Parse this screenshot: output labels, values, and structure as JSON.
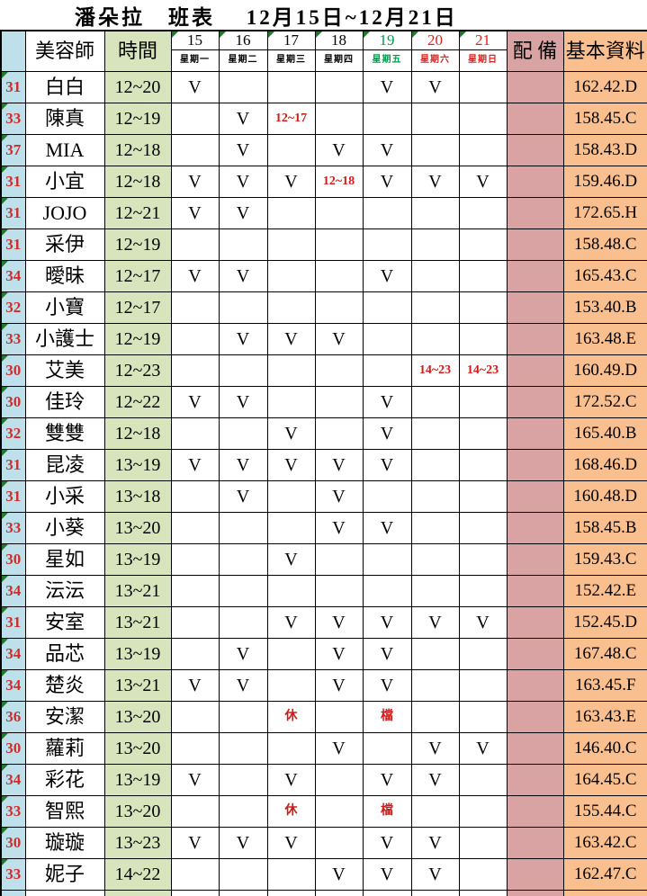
{
  "title": "潘朵拉　班表　 12月15日~12月21日",
  "colors": {
    "row_number_bg": "#BEE0EA",
    "time_col_bg": "#D8E4BC",
    "equipment_col_bg": "#D9A3A3",
    "basic_info_col_bg": "#FABF8F",
    "red_text": "#D22B2B",
    "green_text": "#009B4C",
    "triangle": "#217A2B"
  },
  "table": {
    "headers": {
      "staff": "美容師",
      "time": "時間",
      "equipment": "配 備",
      "basic_info": "基本資料"
    },
    "day_columns": [
      {
        "date": "15",
        "weekday": "星期一",
        "color": "#000000"
      },
      {
        "date": "16",
        "weekday": "星期二",
        "color": "#000000"
      },
      {
        "date": "17",
        "weekday": "星期三",
        "color": "#000000"
      },
      {
        "date": "18",
        "weekday": "星期四",
        "color": "#000000"
      },
      {
        "date": "19",
        "weekday": "星期五",
        "color": "#009B4C"
      },
      {
        "date": "20",
        "weekday": "星期六",
        "color": "#DF2020"
      },
      {
        "date": "21",
        "weekday": "星期日",
        "color": "#DF2020"
      }
    ],
    "rows": [
      {
        "num": "31",
        "name": "白白",
        "time": "12~20",
        "days": [
          "V",
          "",
          "",
          "",
          "V",
          "V",
          ""
        ],
        "info": "162.42.D"
      },
      {
        "num": "33",
        "name": "陳真",
        "time": "12~19",
        "days": [
          "",
          "V",
          "12~17",
          "",
          "",
          "",
          ""
        ],
        "info": "158.45.C"
      },
      {
        "num": "37",
        "name": "MIA",
        "time": "12~18",
        "days": [
          "",
          "V",
          "",
          "V",
          "V",
          "",
          ""
        ],
        "info": "158.43.D"
      },
      {
        "num": "31",
        "name": "小宜",
        "time": "12~18",
        "days": [
          "V",
          "V",
          "V",
          "12~18",
          "V",
          "V",
          "V"
        ],
        "info": "159.46.D"
      },
      {
        "num": "31",
        "name": "JOJO",
        "time": "12~21",
        "days": [
          "V",
          "V",
          "",
          "",
          "",
          "",
          ""
        ],
        "info": "172.65.H"
      },
      {
        "num": "31",
        "name": "采伊",
        "time": "12~19",
        "days": [
          "",
          "",
          "",
          "",
          "",
          "",
          ""
        ],
        "info": "158.48.C"
      },
      {
        "num": "34",
        "name": "曖昧",
        "time": "12~17",
        "days": [
          "V",
          "V",
          "",
          "",
          "V",
          "",
          ""
        ],
        "info": "165.43.C"
      },
      {
        "num": "32",
        "name": "小寶",
        "time": "12~17",
        "days": [
          "",
          "",
          "",
          "",
          "",
          "",
          ""
        ],
        "info": "153.40.B"
      },
      {
        "num": "33",
        "name": "小護士",
        "time": "12~19",
        "days": [
          "",
          "V",
          "V",
          "V",
          "",
          "",
          ""
        ],
        "info": "163.48.E"
      },
      {
        "num": "30",
        "name": "艾美",
        "time": "12~23",
        "days": [
          "",
          "",
          "",
          "",
          "",
          "14~23",
          "14~23"
        ],
        "info": "160.49.D"
      },
      {
        "num": "30",
        "name": "佳玲",
        "time": "12~22",
        "days": [
          "V",
          "V",
          "",
          "",
          "V",
          "",
          ""
        ],
        "info": "172.52.C"
      },
      {
        "num": "32",
        "name": "雙雙",
        "time": "12~18",
        "days": [
          "",
          "",
          "V",
          "",
          "V",
          "",
          ""
        ],
        "info": "165.40.B"
      },
      {
        "num": "31",
        "name": "昆凌",
        "time": "13~19",
        "days": [
          "V",
          "V",
          "V",
          "V",
          "V",
          "",
          ""
        ],
        "info": "168.46.D"
      },
      {
        "num": "31",
        "name": "小采",
        "time": "13~18",
        "days": [
          "",
          "V",
          "",
          "V",
          "",
          "",
          ""
        ],
        "info": "160.48.D"
      },
      {
        "num": "33",
        "name": "小葵",
        "time": "13~20",
        "days": [
          "",
          "",
          "",
          "V",
          "V",
          "",
          ""
        ],
        "info": "158.45.B"
      },
      {
        "num": "30",
        "name": "星如",
        "time": "13~19",
        "days": [
          "",
          "",
          "V",
          "",
          "",
          "",
          ""
        ],
        "info": "159.43.C"
      },
      {
        "num": "34",
        "name": "沄沄",
        "time": "13~21",
        "days": [
          "",
          "",
          "",
          "",
          "",
          "",
          ""
        ],
        "info": "152.42.E"
      },
      {
        "num": "31",
        "name": "安室",
        "time": "13~21",
        "days": [
          "",
          "",
          "V",
          "V",
          "V",
          "V",
          "V"
        ],
        "info": "152.45.D"
      },
      {
        "num": "34",
        "name": "品芯",
        "time": "13~19",
        "days": [
          "",
          "V",
          "",
          "V",
          "V",
          "",
          ""
        ],
        "info": "167.48.C"
      },
      {
        "num": "34",
        "name": "楚炎",
        "time": "13~21",
        "days": [
          "V",
          "V",
          "",
          "V",
          "V",
          "",
          ""
        ],
        "info": "163.45.F"
      },
      {
        "num": "36",
        "name": "安潔",
        "time": "13~20",
        "days": [
          "",
          "",
          "休",
          "",
          "檔",
          "",
          ""
        ],
        "info": "163.43.E"
      },
      {
        "num": "30",
        "name": "蘿莉",
        "time": "13~20",
        "days": [
          "",
          "",
          "",
          "V",
          "",
          "V",
          "V"
        ],
        "info": "146.40.C"
      },
      {
        "num": "34",
        "name": "彩花",
        "time": "13~19",
        "days": [
          "V",
          "",
          "V",
          "",
          "V",
          "V",
          ""
        ],
        "info": "164.45.C"
      },
      {
        "num": "33",
        "name": "智熙",
        "time": "13~20",
        "days": [
          "",
          "",
          "休",
          "",
          "檔",
          "",
          ""
        ],
        "info": "155.44.C"
      },
      {
        "num": "30",
        "name": "璇璇",
        "time": "13~23",
        "days": [
          "V",
          "V",
          "V",
          "",
          "V",
          "V",
          ""
        ],
        "info": "163.42.C"
      },
      {
        "num": "33",
        "name": "妮子",
        "time": "14~22",
        "days": [
          "",
          "",
          "",
          "V",
          "V",
          "V",
          ""
        ],
        "info": "162.47.C"
      }
    ],
    "has_trailing_empty_row": true
  }
}
